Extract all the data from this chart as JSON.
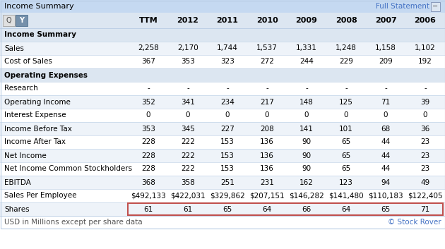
{
  "title": "Income Summary",
  "full_statement": "Full Statement",
  "columns": [
    "TTM",
    "2012",
    "2011",
    "2010",
    "2009",
    "2008",
    "2007",
    "2006"
  ],
  "title_bg": "#c5d9f1",
  "header_bg": "#dce6f1",
  "row_bg_odd": "#ffffff",
  "row_bg_even": "#eef3f9",
  "rows": [
    {
      "label": "Income Summary",
      "bold": true,
      "values": null,
      "section_header": true
    },
    {
      "label": "Sales",
      "bold": false,
      "values": [
        "2,258",
        "2,170",
        "1,744",
        "1,537",
        "1,331",
        "1,248",
        "1,158",
        "1,102"
      ]
    },
    {
      "label": "Cost of Sales",
      "bold": false,
      "values": [
        "367",
        "353",
        "323",
        "272",
        "244",
        "229",
        "209",
        "192"
      ]
    },
    {
      "label": "Operating Expenses",
      "bold": true,
      "values": null,
      "section_header": true
    },
    {
      "label": "Research",
      "bold": false,
      "values": [
        "-",
        "-",
        "-",
        "-",
        "-",
        "-",
        "-",
        "-"
      ]
    },
    {
      "label": "Operating Income",
      "bold": false,
      "values": [
        "352",
        "341",
        "234",
        "217",
        "148",
        "125",
        "71",
        "39"
      ]
    },
    {
      "label": "Interest Expense",
      "bold": false,
      "values": [
        "0",
        "0",
        "0",
        "0",
        "0",
        "0",
        "0",
        "0"
      ]
    },
    {
      "label": "Income Before Tax",
      "bold": false,
      "values": [
        "353",
        "345",
        "227",
        "208",
        "141",
        "101",
        "68",
        "36"
      ]
    },
    {
      "label": "Income After Tax",
      "bold": false,
      "values": [
        "228",
        "222",
        "153",
        "136",
        "90",
        "65",
        "44",
        "23"
      ]
    },
    {
      "label": "Net Income",
      "bold": false,
      "values": [
        "228",
        "222",
        "153",
        "136",
        "90",
        "65",
        "44",
        "23"
      ]
    },
    {
      "label": "Net Income Common Stockholders",
      "bold": false,
      "values": [
        "228",
        "222",
        "153",
        "136",
        "90",
        "65",
        "44",
        "23"
      ]
    },
    {
      "label": "EBITDA",
      "bold": false,
      "values": [
        "368",
        "358",
        "251",
        "231",
        "162",
        "123",
        "94",
        "49"
      ]
    },
    {
      "label": "Sales Per Employee",
      "bold": false,
      "values": [
        "$492,133",
        "$422,031",
        "$329,862",
        "$207,151",
        "$146,282",
        "$141,480",
        "$110,183",
        "$122,405"
      ]
    },
    {
      "label": "Shares",
      "bold": false,
      "values": [
        "61",
        "61",
        "65",
        "64",
        "66",
        "64",
        "65",
        "71"
      ],
      "highlight_box": true
    }
  ],
  "footer": "USD in Millions except per share data",
  "watermark": "© Stock Rover",
  "watermark_color": "#4472c4",
  "border_color": "#b8cce4",
  "text_color": "#000000",
  "link_color": "#4472c4"
}
